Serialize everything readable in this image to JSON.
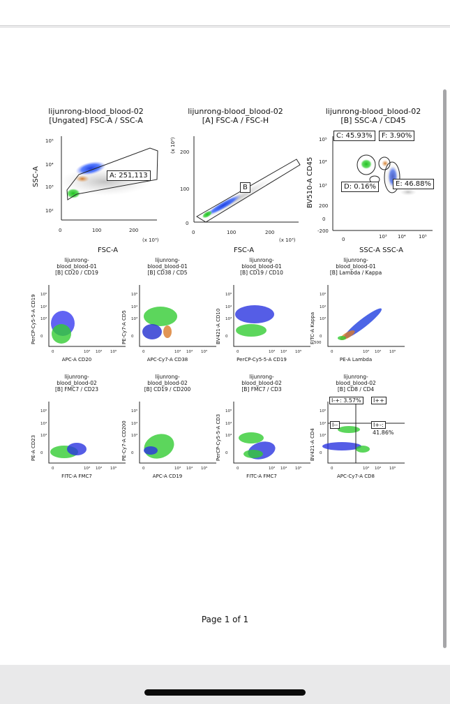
{
  "footer": "Page 1 of 1",
  "row_labels": [
    "FSC-A",
    "FSC-A",
    "SSC-A SSC-A"
  ],
  "plots": [
    {
      "title1": "lijunrong-blood_blood-02",
      "title2": "[Ungated] FSC-A / SSC-A",
      "xlabel": "",
      "ylabel": "SSC-A",
      "xticks": [
        "0",
        "100",
        "200"
      ],
      "yticks": [
        "10⁵",
        "10⁴",
        "10³",
        "10²"
      ],
      "xunit": "(x 10³)",
      "yunit": "",
      "gates": [
        {
          "label": "A: 251,113"
        }
      ]
    },
    {
      "title1": "lijunrong-blood_blood-02",
      "title2": "[A] FSC-A / FSC-H",
      "xlabel": "",
      "ylabel": "",
      "xticks": [
        "0",
        "100",
        "200"
      ],
      "yticks": [
        "200",
        "100",
        "0"
      ],
      "xunit": "(x 10³)",
      "yunit": "(x 10³)",
      "gates": [
        {
          "label": "B"
        }
      ]
    },
    {
      "title1": "lijunrong-blood_blood-02",
      "title2": "[B] SSC-A / CD45",
      "xlabel": "",
      "ylabel": "BV510-A CD45",
      "xticks": [
        "0",
        "10³",
        "10⁴",
        "10⁵"
      ],
      "yticks": [
        "10⁵",
        "10⁴",
        "10³",
        "200",
        "0",
        "-200"
      ],
      "xunit": "",
      "yunit": "",
      "gates": [
        {
          "label": "C: 45.93%"
        },
        {
          "label": "F: 3.90%"
        },
        {
          "label": "D: 0.16%"
        },
        {
          "label": "E: 46.88%"
        }
      ]
    },
    {
      "title1": "lijunrong-",
      "title2": "blood_blood-01",
      "title3": "[B] CD20 / CD19",
      "xlabel": "APC-A CD20",
      "ylabel": "PerCP-Cy5-5-A CD19",
      "xticks": [
        "0",
        "10³",
        "10⁴",
        "10⁵"
      ],
      "yticks": [
        "10⁵",
        "10⁴",
        "10³",
        "0"
      ]
    },
    {
      "title1": "lijunrong-",
      "title2": "blood_blood-01",
      "title3": "[B] CD38 / CD5",
      "xlabel": "APC-Cy7-A CD38",
      "ylabel": "PE-Cy7-A CD5",
      "xticks": [
        "0",
        "10³",
        "10⁴",
        "10⁵"
      ],
      "yticks": [
        "10⁵",
        "10⁴",
        "10³",
        "0"
      ]
    },
    {
      "title1": "lijunrong-",
      "title2": "blood_blood-01",
      "title3": "[B] CD19 / CD10",
      "xlabel": "PerCP-Cy5-5-A CD19",
      "ylabel": "BV421-A CD10",
      "xticks": [
        "0",
        "10³",
        "10⁴",
        "10⁵"
      ],
      "yticks": [
        "10⁵",
        "10⁴",
        "10³",
        "0"
      ]
    },
    {
      "title1": "lijunrong-",
      "title2": "blood_blood-01",
      "title3": "[B] Lambda / Kappa",
      "xlabel": "PE-A Lambda",
      "ylabel": "FITC-A Kappa",
      "xticks": [
        "0",
        "10³",
        "10⁴",
        "10⁵"
      ],
      "yticks": [
        "10⁵",
        "10⁴",
        "10³",
        "0",
        "-500"
      ]
    },
    {
      "title1": "lijunrong-",
      "title2": "blood_blood-02",
      "title3": "[B] FMC7 / CD23",
      "xlabel": "FITC-A FMC7",
      "ylabel": "PE-A CD23",
      "xticks": [
        "0",
        "10³",
        "10⁴",
        "10⁵"
      ],
      "yticks": [
        "10⁵",
        "10⁴",
        "10³",
        "0"
      ]
    },
    {
      "title1": "lijunrong-",
      "title2": "blood_blood-02",
      "title3": "[B] CD19 / CD200",
      "xlabel": "APC-A CD19",
      "ylabel": "PE-Cy7-A CD200",
      "xticks": [
        "0",
        "10³",
        "10⁴",
        "10⁵"
      ],
      "yticks": [
        "10⁵",
        "10⁴",
        "10³",
        "0"
      ]
    },
    {
      "title1": "lijunrong-",
      "title2": "blood_blood-02",
      "title3": "[B] FMC7 / CD3",
      "xlabel": "FITC-A FMC7",
      "ylabel": "PerCP-Cy5-5-A CD3",
      "xticks": [
        "0",
        "10³",
        "10⁴",
        "10⁵"
      ],
      "yticks": [
        "10⁵",
        "10⁴",
        "10³",
        "0"
      ]
    },
    {
      "title1": "lijunrong-",
      "title2": "blood_blood-02",
      "title3": "[B] CD8 / CD4",
      "xlabel": "APC-Cy7-A CD8",
      "ylabel": "BV421-A CD4",
      "xticks": [
        "0",
        "10³",
        "10⁴",
        "10⁵"
      ],
      "yticks": [
        "10⁵",
        "10⁴",
        "10³",
        "0"
      ],
      "gates": [
        {
          "label": "I-+: 3.57%"
        },
        {
          "label": "I++"
        },
        {
          "label": "I--"
        },
        {
          "label": "I+-:"
        },
        {
          "label": "41.86%"
        }
      ]
    }
  ]
}
